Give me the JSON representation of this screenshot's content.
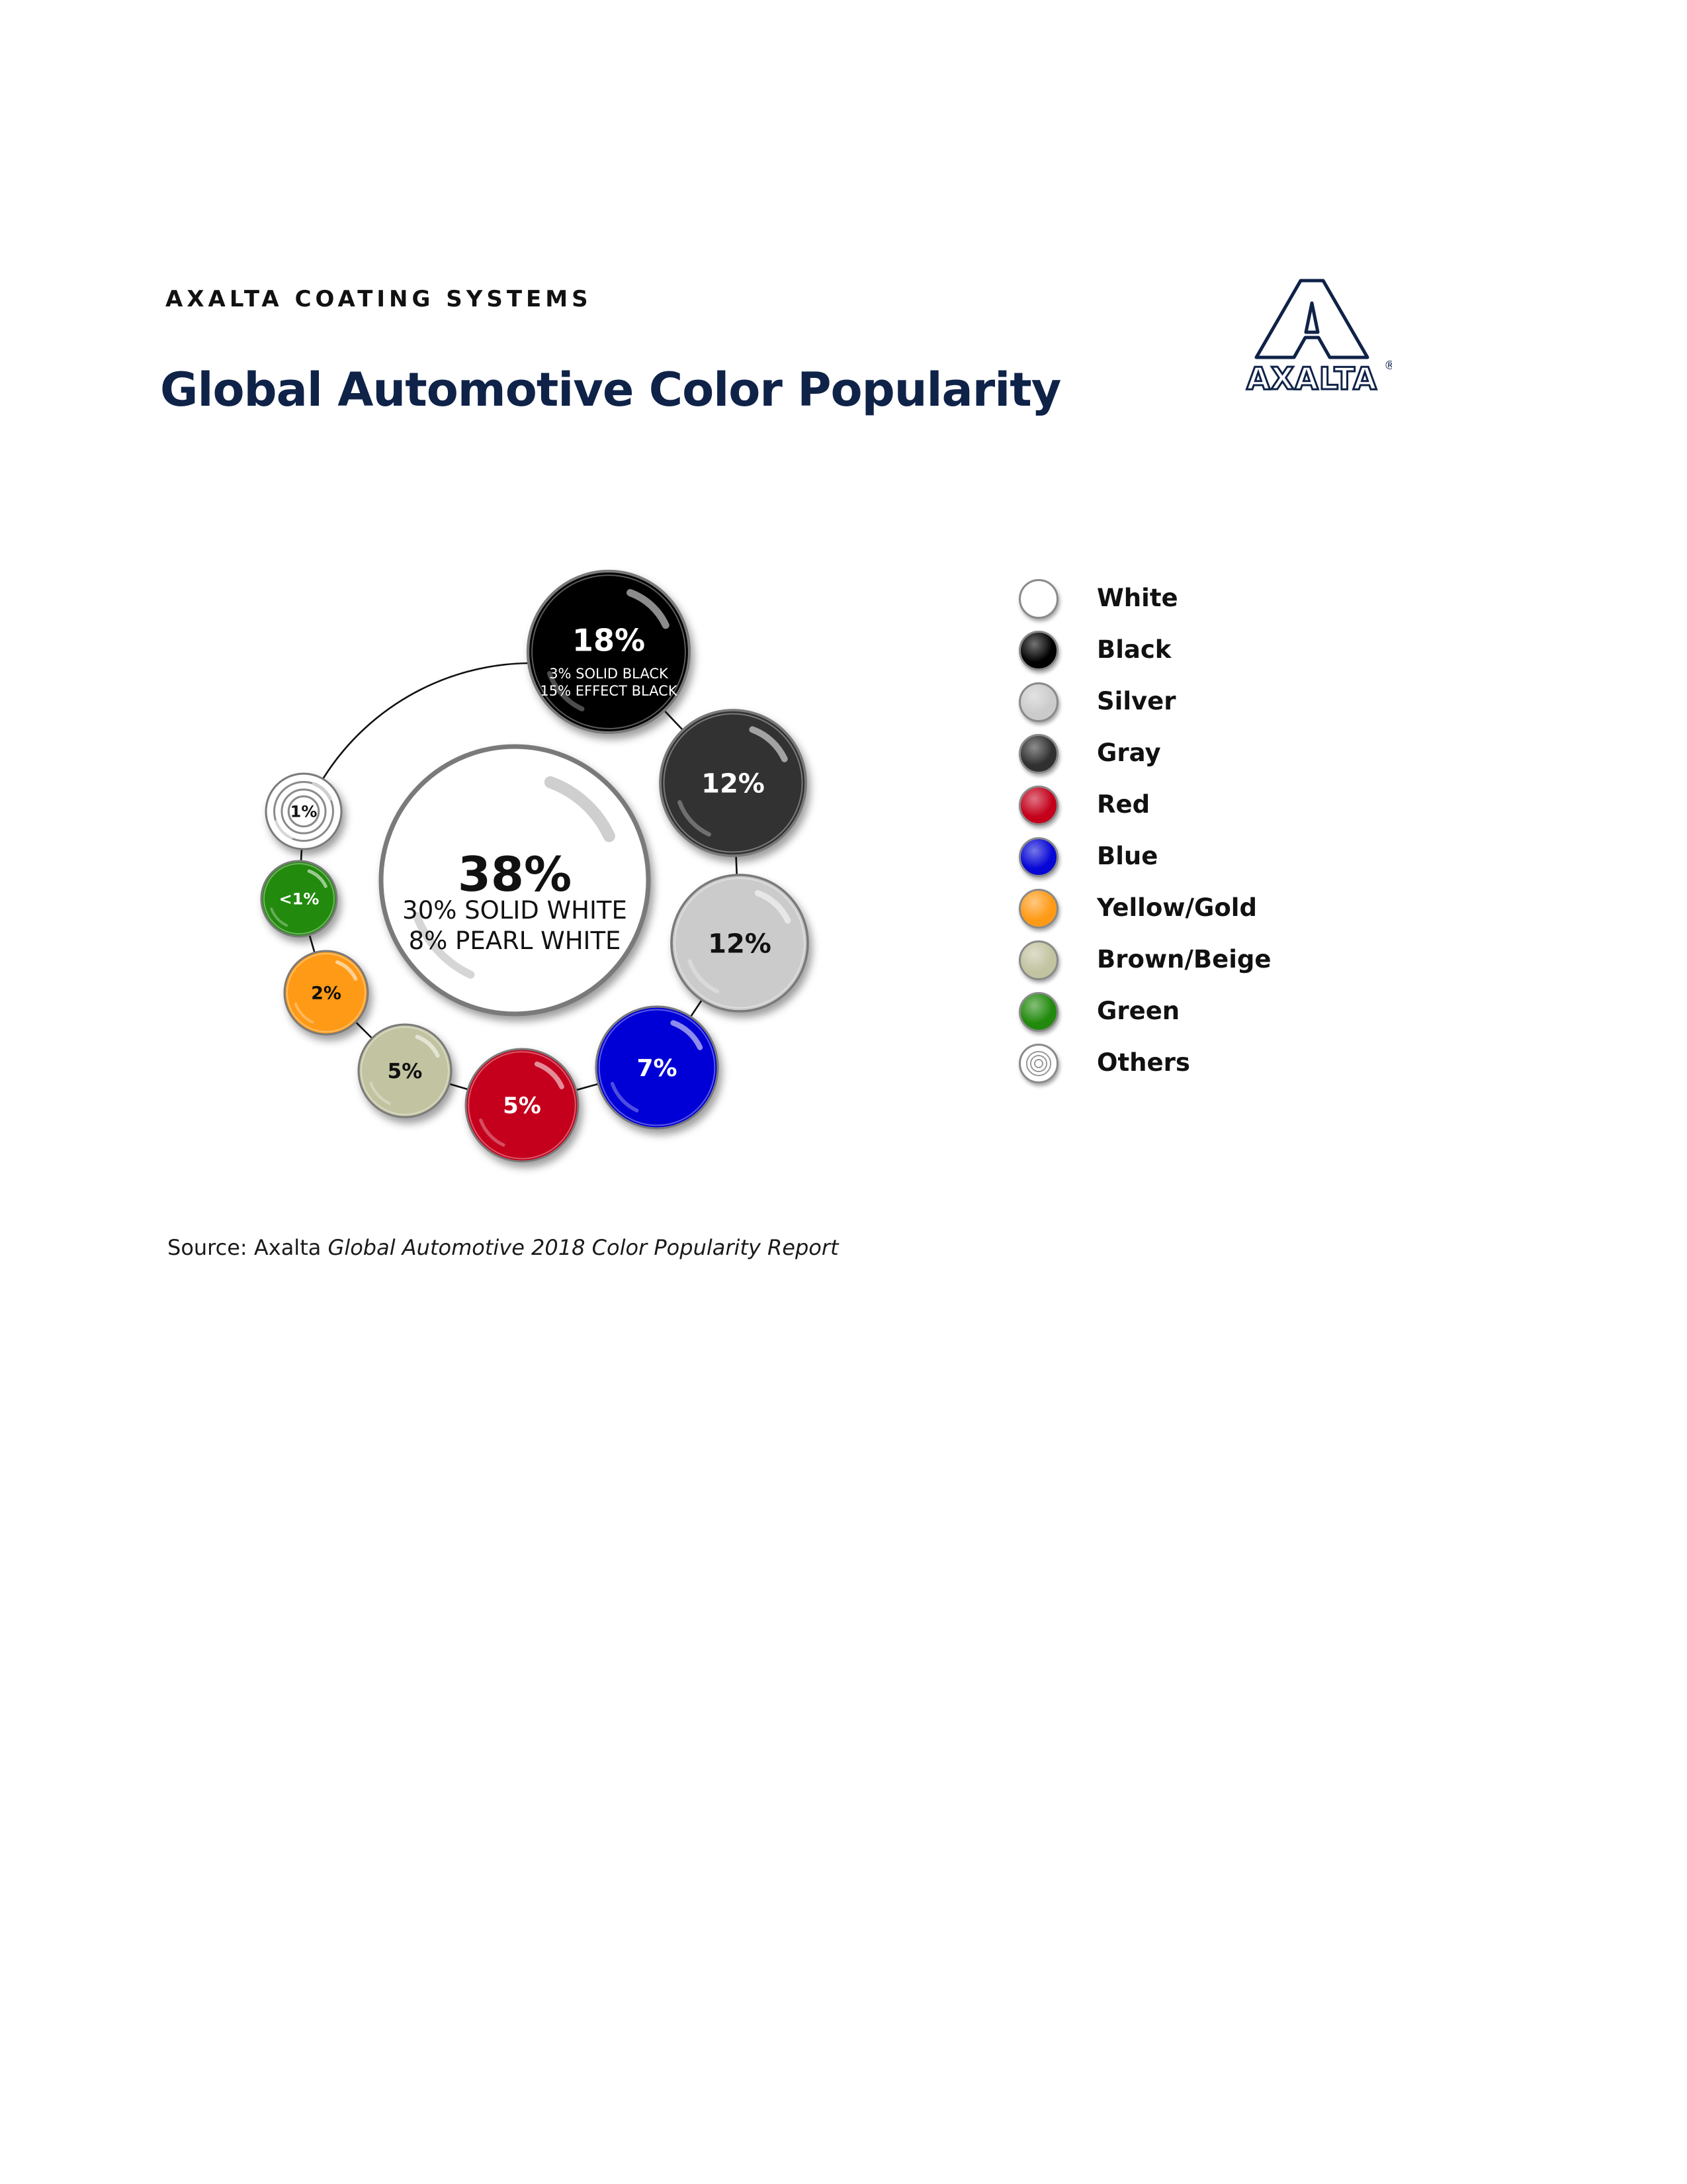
{
  "header": {
    "kicker": "AXALTA COATING SYSTEMS",
    "title": "Global Automotive Color Popularity",
    "logo_text": "AXALTA",
    "logo_mark": "®"
  },
  "chart_data": {
    "type": "bubble",
    "title": "Global Automotive Color Popularity",
    "series": [
      {
        "name": "White",
        "label": "38%",
        "value": 38,
        "color": "#ffffff",
        "text_color": "#111111",
        "sub": [
          "30% SOLID WHITE",
          "8% PEARL WHITE"
        ]
      },
      {
        "name": "Black",
        "label": "18%",
        "value": 18,
        "color": "#000000",
        "text_color": "#ffffff",
        "sub": [
          "3% SOLID BLACK",
          "15% EFFECT BLACK"
        ]
      },
      {
        "name": "Gray",
        "label": "12%",
        "value": 12,
        "color": "#303030",
        "text_color": "#ffffff"
      },
      {
        "name": "Silver",
        "label": "12%",
        "value": 12,
        "color": "#cbcbcb",
        "text_color": "#111111"
      },
      {
        "name": "Blue",
        "label": "7%",
        "value": 7,
        "color": "#0606d6",
        "text_color": "#ffffff"
      },
      {
        "name": "Red",
        "label": "5%",
        "value": 5,
        "color": "#c4001a",
        "text_color": "#ffffff"
      },
      {
        "name": "Brown/Beige",
        "label": "5%",
        "value": 5,
        "color": "#c2c3a0",
        "text_color": "#111111"
      },
      {
        "name": "Yellow/Gold",
        "label": "2%",
        "value": 2,
        "color": "#ff9a16",
        "text_color": "#111111"
      },
      {
        "name": "Green",
        "label": "<1%",
        "value": 0.5,
        "color": "#218a0c",
        "text_color": "#ffffff"
      },
      {
        "name": "Others",
        "label": "1%",
        "value": 1,
        "color": "#ffffff",
        "text_color": "#111111",
        "pattern": "concentric-rings"
      }
    ],
    "legend": {
      "position": "right",
      "items": [
        {
          "label": "White",
          "color": "#ffffff"
        },
        {
          "label": "Black",
          "color": "#000000"
        },
        {
          "label": "Silver",
          "color": "#cbcbcb"
        },
        {
          "label": "Gray",
          "color": "#303030"
        },
        {
          "label": "Red",
          "color": "#c4001a"
        },
        {
          "label": "Blue",
          "color": "#0606d6"
        },
        {
          "label": "Yellow/Gold",
          "color": "#ff9a16"
        },
        {
          "label": "Brown/Beige",
          "color": "#c2c3a0"
        },
        {
          "label": "Green",
          "color": "#218a0c"
        },
        {
          "label": "Others",
          "color": "#ffffff",
          "pattern": "concentric-rings"
        }
      ]
    }
  },
  "footer": {
    "source_prefix": "Source: Axalta ",
    "source_title": "Global Automotive 2018 Color Popularity Report"
  }
}
